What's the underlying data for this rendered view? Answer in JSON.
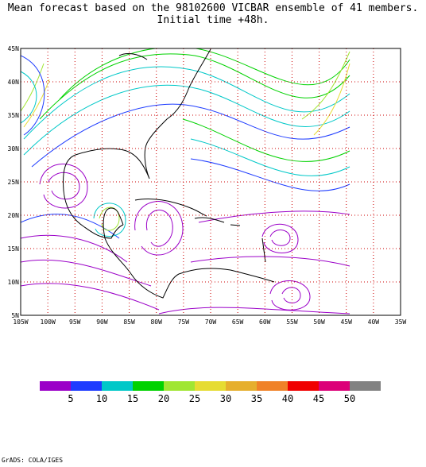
{
  "title": {
    "line1": "Mean forecast based on the 98102600 VICBAR ensemble of 41 members.",
    "line2": "Initial time +48h."
  },
  "map": {
    "lat_labels": [
      "45N",
      "40N",
      "35N",
      "30N",
      "25N",
      "20N",
      "15N",
      "10N",
      "5N"
    ],
    "lon_labels": [
      "105W",
      "100W",
      "95W",
      "90W",
      "85W",
      "80W",
      "75W",
      "70W",
      "65W",
      "60W",
      "55W",
      "50W",
      "45W",
      "40W",
      "35W"
    ],
    "lon_range": [
      -105,
      -35
    ],
    "lat_range": [
      5,
      45
    ],
    "grid_color": "#cc0000",
    "coast_color": "#000000"
  },
  "legend": {
    "colors": [
      "#9b00c8",
      "#1e3cff",
      "#00c8c8",
      "#00d200",
      "#a0e632",
      "#e6dc32",
      "#e6af2d",
      "#f08228",
      "#f00000",
      "#dc0078",
      "#828282"
    ],
    "labels": [
      "5",
      "10",
      "15",
      "20",
      "25",
      "30",
      "35",
      "40",
      "45",
      "50"
    ]
  },
  "footer": "GrADS: COLA/IGES"
}
